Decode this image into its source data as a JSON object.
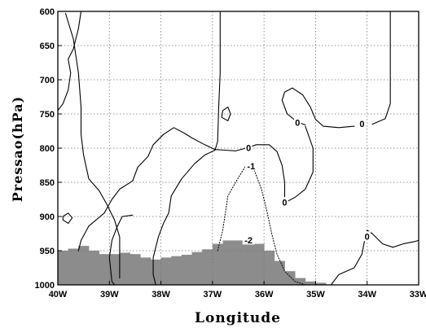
{
  "chart_data": {
    "type": "contour",
    "xlabel": "Longitude",
    "ylabel": "Pressao(hPa)",
    "x_ticks": [
      "40W",
      "39W",
      "38W",
      "37W",
      "36W",
      "35W",
      "34W",
      "33W"
    ],
    "y_ticks": [
      "600",
      "650",
      "700",
      "750",
      "800",
      "850",
      "900",
      "950",
      "1000"
    ],
    "xlim": [
      -40,
      -33
    ],
    "ylim": [
      1000,
      600
    ],
    "y_axis_inverted": true,
    "grid": true,
    "contour_labels": [
      {
        "text": "0",
        "lon": -36.3,
        "p": 800
      },
      {
        "text": "0",
        "lon": -35.35,
        "p": 763
      },
      {
        "text": "0",
        "lon": -34.1,
        "p": 765
      },
      {
        "text": "0",
        "lon": -35.6,
        "p": 880
      },
      {
        "text": "0",
        "lon": -34.0,
        "p": 930
      },
      {
        "text": "-1",
        "lon": -36.25,
        "p": 827
      },
      {
        "text": "-2",
        "lon": -36.3,
        "p": 935
      }
    ],
    "contours": [
      {
        "level": 0,
        "style": "solid",
        "points": [
          [
            -40,
            745
          ],
          [
            -39.9,
            735
          ],
          [
            -39.8,
            715
          ],
          [
            -39.75,
            690
          ],
          [
            -39.8,
            670
          ],
          [
            -39.7,
            655
          ],
          [
            -39.6,
            625
          ],
          [
            -39.55,
            600
          ]
        ]
      },
      {
        "level": 0,
        "style": "solid",
        "points": [
          [
            -39.85,
            603
          ],
          [
            -39.7,
            640
          ],
          [
            -39.6,
            690
          ],
          [
            -39.55,
            740
          ],
          [
            -39.55,
            780
          ],
          [
            -39.5,
            810
          ],
          [
            -39.4,
            845
          ],
          [
            -39.2,
            862
          ],
          [
            -39.05,
            882
          ],
          [
            -38.9,
            905
          ],
          [
            -38.8,
            930
          ],
          [
            -38.8,
            990
          ]
        ]
      },
      {
        "level": 0,
        "style": "solid",
        "points": [
          [
            -39.6,
            950
          ],
          [
            -39.55,
            935
          ],
          [
            -39.4,
            914
          ],
          [
            -39.1,
            895
          ],
          [
            -38.95,
            875
          ],
          [
            -38.8,
            860
          ],
          [
            -38.55,
            848
          ],
          [
            -38.45,
            828
          ],
          [
            -38.25,
            812
          ],
          [
            -38.15,
            795
          ],
          [
            -37.95,
            780
          ],
          [
            -37.75,
            770
          ],
          [
            -37.55,
            778
          ],
          [
            -37.4,
            785
          ],
          [
            -37.15,
            795
          ],
          [
            -36.95,
            802
          ],
          [
            -36.75,
            803
          ],
          [
            -36.55,
            804
          ],
          [
            -36.35,
            800
          ],
          [
            -36.15,
            795
          ],
          [
            -35.9,
            795
          ],
          [
            -35.75,
            805
          ],
          [
            -35.65,
            825
          ],
          [
            -35.6,
            850
          ],
          [
            -35.6,
            875
          ]
        ]
      },
      {
        "level": 0,
        "style": "solid",
        "points": [
          [
            -38.1,
            1000
          ],
          [
            -38.15,
            985
          ],
          [
            -38.15,
            960
          ],
          [
            -38.05,
            930
          ],
          [
            -37.95,
            910
          ],
          [
            -37.85,
            895
          ],
          [
            -37.8,
            870
          ],
          [
            -37.6,
            845
          ],
          [
            -37.35,
            823
          ],
          [
            -37.15,
            810
          ],
          [
            -36.95,
            803
          ]
        ]
      },
      {
        "level": 0,
        "style": "solid",
        "points": [
          [
            -38.55,
            898
          ],
          [
            -38.75,
            900
          ],
          [
            -38.85,
            915
          ],
          [
            -38.95,
            935
          ],
          [
            -39.0,
            960
          ],
          [
            -38.95,
            995
          ],
          [
            -38.9,
            1000
          ]
        ]
      },
      {
        "level": 0,
        "style": "solid",
        "points": [
          [
            -35.6,
            880
          ],
          [
            -35.4,
            872
          ],
          [
            -35.2,
            860
          ],
          [
            -35.05,
            835
          ],
          [
            -35.05,
            800
          ],
          [
            -35.2,
            768
          ]
        ]
      },
      {
        "level": 0,
        "style": "solid",
        "points": [
          [
            -35.2,
            766
          ],
          [
            -35.35,
            762
          ],
          [
            -35.55,
            750
          ],
          [
            -35.65,
            730
          ],
          [
            -35.6,
            718
          ],
          [
            -35.45,
            712
          ],
          [
            -35.25,
            722
          ],
          [
            -35.1,
            740
          ],
          [
            -35.0,
            758
          ],
          [
            -34.85,
            768
          ],
          [
            -34.55,
            770
          ],
          [
            -34.25,
            768
          ]
        ]
      },
      {
        "level": 0,
        "style": "solid",
        "points": [
          [
            -33.9,
            765
          ],
          [
            -33.65,
            757
          ],
          [
            -33.55,
            735
          ],
          [
            -33.55,
            690
          ],
          [
            -33.55,
            640
          ],
          [
            -33.55,
            600
          ]
        ]
      },
      {
        "level": 0,
        "style": "solid",
        "points": [
          [
            -36.85,
            600
          ],
          [
            -36.85,
            640
          ],
          [
            -36.85,
            690
          ],
          [
            -36.88,
            740
          ],
          [
            -36.9,
            790
          ],
          [
            -36.95,
            803
          ]
        ]
      },
      {
        "level": 0,
        "style": "solid",
        "points": [
          [
            -36.7,
            740
          ],
          [
            -36.8,
            745
          ],
          [
            -36.82,
            755
          ],
          [
            -36.7,
            760
          ],
          [
            -36.65,
            750
          ],
          [
            -36.7,
            740
          ]
        ]
      },
      {
        "level": 0,
        "style": "solid",
        "points": [
          [
            -39.9,
            900
          ],
          [
            -39.8,
            895
          ],
          [
            -39.72,
            902
          ],
          [
            -39.8,
            910
          ],
          [
            -39.9,
            905
          ],
          [
            -39.9,
            900
          ]
        ]
      },
      {
        "level": 0,
        "style": "solid",
        "points": [
          [
            -34.7,
            1000
          ],
          [
            -34.55,
            985
          ],
          [
            -34.25,
            975
          ],
          [
            -34.1,
            955
          ],
          [
            -34.05,
            935
          ],
          [
            -34.0,
            920
          ],
          [
            -33.9,
            925
          ],
          [
            -33.7,
            940
          ],
          [
            -33.5,
            945
          ],
          [
            -33.3,
            940
          ],
          [
            -33.1,
            937
          ],
          [
            -33.0,
            935
          ]
        ]
      },
      {
        "level": -1,
        "style": "dotted",
        "points": [
          [
            -36.9,
            950
          ],
          [
            -36.8,
            920
          ],
          [
            -36.7,
            870
          ],
          [
            -36.55,
            850
          ],
          [
            -36.35,
            825
          ],
          [
            -36.2,
            830
          ],
          [
            -36.05,
            860
          ],
          [
            -35.95,
            890
          ],
          [
            -35.85,
            925
          ],
          [
            -35.75,
            955
          ],
          [
            -35.6,
            980
          ],
          [
            -35.4,
            995
          ],
          [
            -35.2,
            1000
          ]
        ]
      }
    ],
    "topography": {
      "color": "#8c8c8c",
      "base_p": 1000,
      "columns": [
        {
          "lon": [
            -40.0,
            -39.8
          ],
          "top_p": 950
        },
        {
          "lon": [
            -39.8,
            -39.6
          ],
          "top_p": 947
        },
        {
          "lon": [
            -39.6,
            -39.4
          ],
          "top_p": 943
        },
        {
          "lon": [
            -39.4,
            -39.2
          ],
          "top_p": 950
        },
        {
          "lon": [
            -39.2,
            -39.0
          ],
          "top_p": 955
        },
        {
          "lon": [
            -39.0,
            -38.8
          ],
          "top_p": 955
        },
        {
          "lon": [
            -38.8,
            -38.6
          ],
          "top_p": 953
        },
        {
          "lon": [
            -38.6,
            -38.4
          ],
          "top_p": 955
        },
        {
          "lon": [
            -38.4,
            -38.2
          ],
          "top_p": 960
        },
        {
          "lon": [
            -38.2,
            -38.0
          ],
          "top_p": 963
        },
        {
          "lon": [
            -38.0,
            -37.8
          ],
          "top_p": 960
        },
        {
          "lon": [
            -37.8,
            -37.6
          ],
          "top_p": 958
        },
        {
          "lon": [
            -37.6,
            -37.4
          ],
          "top_p": 956
        },
        {
          "lon": [
            -37.4,
            -37.2
          ],
          "top_p": 952
        },
        {
          "lon": [
            -37.2,
            -37.0
          ],
          "top_p": 948
        },
        {
          "lon": [
            -37.0,
            -36.8
          ],
          "top_p": 940
        },
        {
          "lon": [
            -36.8,
            -36.6
          ],
          "top_p": 935
        },
        {
          "lon": [
            -36.6,
            -36.4
          ],
          "top_p": 935
        },
        {
          "lon": [
            -36.4,
            -36.2
          ],
          "top_p": 935
        },
        {
          "lon": [
            -36.2,
            -36.0
          ],
          "top_p": 940
        },
        {
          "lon": [
            -36.0,
            -35.8
          ],
          "top_p": 950
        },
        {
          "lon": [
            -35.8,
            -35.6
          ],
          "top_p": 965
        },
        {
          "lon": [
            -35.6,
            -35.4
          ],
          "top_p": 980
        },
        {
          "lon": [
            -35.4,
            -35.2
          ],
          "top_p": 990
        },
        {
          "lon": [
            -35.2,
            -35.0
          ],
          "top_p": 995
        },
        {
          "lon": [
            -35.0,
            -34.8
          ],
          "top_p": 997
        }
      ]
    }
  }
}
